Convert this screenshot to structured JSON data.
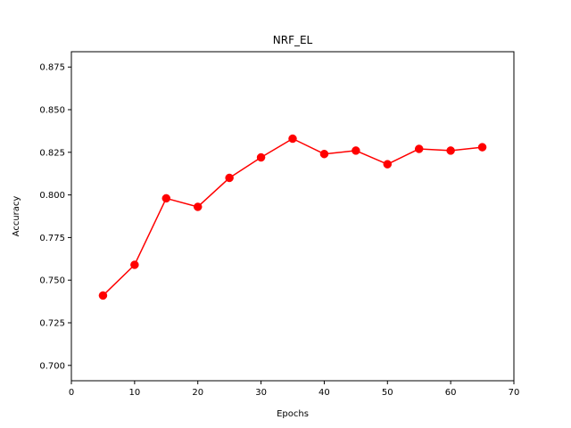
{
  "chart_data": {
    "type": "line",
    "title": "NRF_EL",
    "xlabel": "Epochs",
    "ylabel": "Accuracy",
    "xlim": [
      0,
      70
    ],
    "ylim": [
      0.691,
      0.884
    ],
    "xticks": [
      0,
      10,
      20,
      30,
      40,
      50,
      60,
      70
    ],
    "xtick_labels": [
      "0",
      "10",
      "20",
      "30",
      "40",
      "50",
      "60",
      "70"
    ],
    "yticks": [
      0.7,
      0.725,
      0.75,
      0.775,
      0.8,
      0.825,
      0.85,
      0.875
    ],
    "ytick_labels": [
      "0.700",
      "0.725",
      "0.750",
      "0.775",
      "0.800",
      "0.825",
      "0.850",
      "0.875"
    ],
    "grid": false,
    "series": [
      {
        "color": "#ff0000",
        "marker": "circle",
        "x": [
          5,
          10,
          15,
          20,
          25,
          30,
          35,
          40,
          45,
          50,
          55,
          60,
          65
        ],
        "y": [
          0.741,
          0.759,
          0.798,
          0.793,
          0.81,
          0.822,
          0.833,
          0.824,
          0.826,
          0.818,
          0.827,
          0.826,
          0.828
        ]
      }
    ]
  }
}
